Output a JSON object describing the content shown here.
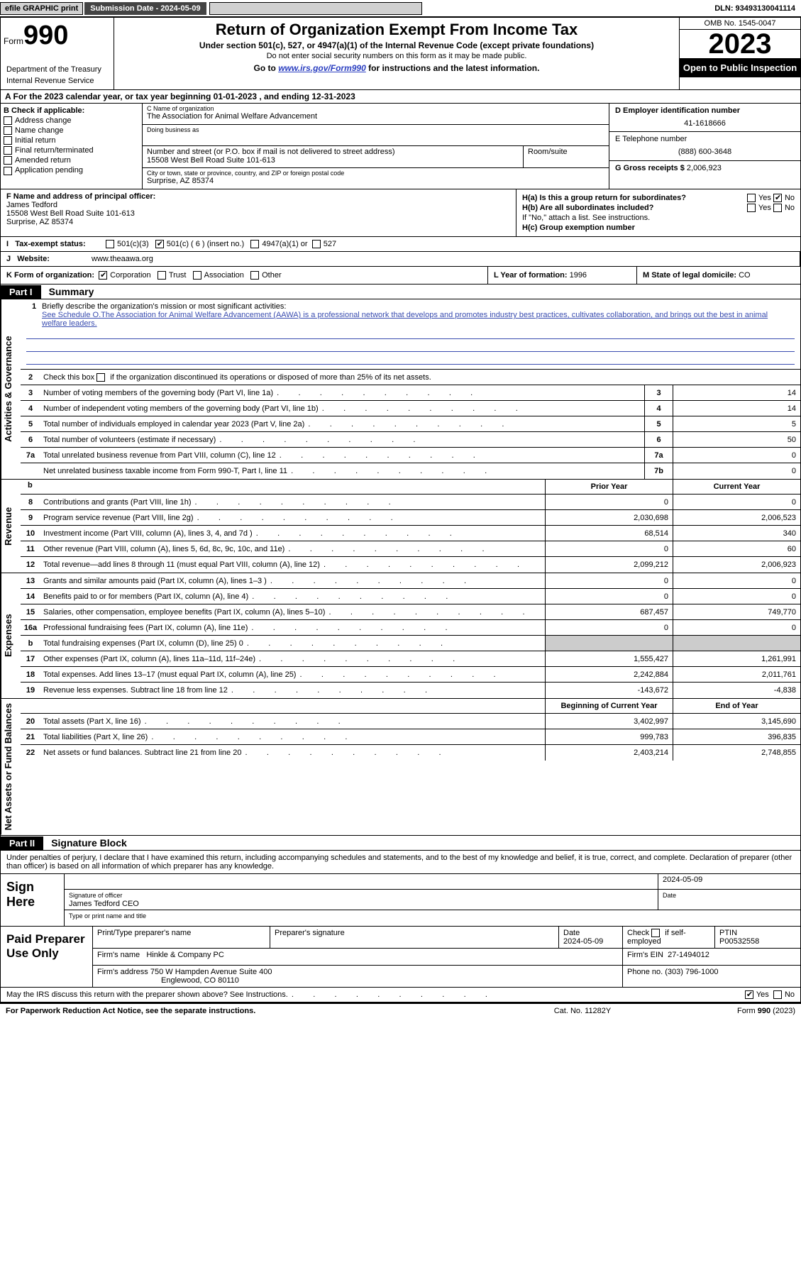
{
  "colors": {
    "link": "#2a3ec0",
    "black": "#000000",
    "shade": "#cccccc",
    "topbar_btn": "#d0d0d0",
    "topbar_dark": "#444444"
  },
  "topbar": {
    "efile": "efile GRAPHIC print",
    "submission": "Submission Date - 2024-05-09",
    "dln": "DLN: 93493130041114"
  },
  "header": {
    "form_prefix": "Form",
    "form_num": "990",
    "dept": "Department of the Treasury",
    "irs": "Internal Revenue Service",
    "title": "Return of Organization Exempt From Income Tax",
    "sub": "Under section 501(c), 527, or 4947(a)(1) of the Internal Revenue Code (except private foundations)",
    "nossn": "Do not enter social security numbers on this form as it may be made public.",
    "goto_prefix": "Go to ",
    "goto_link": "www.irs.gov/Form990",
    "goto_suffix": " for instructions and the latest information.",
    "omb": "OMB No. 1545-0047",
    "year": "2023",
    "open": "Open to Public Inspection"
  },
  "row_a": "A For the 2023 calendar year, or tax year beginning 01-01-2023    , and ending 12-31-2023",
  "box_b": {
    "label": "B Check if applicable:",
    "items": [
      "Address change",
      "Name change",
      "Initial return",
      "Final return/terminated",
      "Amended return",
      "Application pending"
    ]
  },
  "box_c": {
    "name_lbl": "C Name of organization",
    "name": "The Association for Animal Welfare Advancement",
    "dba_lbl": "Doing business as",
    "dba": "",
    "street_lbl": "Number and street (or P.O. box if mail is not delivered to street address)",
    "street": "15508 West Bell Road Suite 101-613",
    "room_lbl": "Room/suite",
    "room": "",
    "city_lbl": "City or town, state or province, country, and ZIP or foreign postal code",
    "city": "Surprise, AZ  85374"
  },
  "box_d": {
    "lbl": "D Employer identification number",
    "val": "41-1618666"
  },
  "box_e": {
    "lbl": "E Telephone number",
    "val": "(888) 600-3648"
  },
  "box_g": {
    "lbl": "G Gross receipts $",
    "val": "2,006,923"
  },
  "box_f": {
    "lbl": "F Name and address of principal officer:",
    "name": "James Tedford",
    "street": "15508 West Bell Road Suite 101-613",
    "city": "Surprise, AZ  85374"
  },
  "box_h": {
    "a_lbl": "H(a)  Is this a group return for subordinates?",
    "a_yes": "Yes",
    "a_no": "No",
    "b_lbl": "H(b)  Are all subordinates included?",
    "b_note": "If \"No,\" attach a list. See instructions.",
    "c_lbl": "H(c)  Group exemption number"
  },
  "row_i": {
    "lbl": "Tax-exempt status:",
    "opt1": "501(c)(3)",
    "opt2": "501(c) ( 6 ) (insert no.)",
    "opt3": "4947(a)(1) or",
    "opt4": "527"
  },
  "row_j": {
    "lbl": "Website:",
    "val": "www.theaawa.org"
  },
  "row_k": {
    "lbl": "K Form of organization:",
    "opts": [
      "Corporation",
      "Trust",
      "Association",
      "Other"
    ],
    "l_lbl": "L Year of formation:",
    "l_val": "1996",
    "m_lbl": "M State of legal domicile:",
    "m_val": "CO"
  },
  "part1": {
    "hdr": "Part I",
    "title": "Summary",
    "vtabs": [
      "Activities & Governance",
      "Revenue",
      "Expenses",
      "Net Assets or Fund Balances"
    ],
    "q1_lbl": "Briefly describe the organization's mission or most significant activities:",
    "q1_text": "See Schedule O.The Association for Animal Welfare Advancement (AAWA) is a professional network that develops and promotes industry best practices, cultivates collaboration, and brings out the best in animal welfare leaders.",
    "q2": "Check this box      if the organization discontinued its operations or disposed of more than 25% of its net assets.",
    "prior_hdr": "Prior Year",
    "curr_hdr": "Current Year",
    "begin_hdr": "Beginning of Current Year",
    "end_hdr": "End of Year",
    "lines_single": [
      {
        "n": "3",
        "t": "Number of voting members of the governing body (Part VI, line 1a)",
        "box": "3",
        "v": "14"
      },
      {
        "n": "4",
        "t": "Number of independent voting members of the governing body (Part VI, line 1b)",
        "box": "4",
        "v": "14"
      },
      {
        "n": "5",
        "t": "Total number of individuals employed in calendar year 2023 (Part V, line 2a)",
        "box": "5",
        "v": "5"
      },
      {
        "n": "6",
        "t": "Total number of volunteers (estimate if necessary)",
        "box": "6",
        "v": "50"
      },
      {
        "n": "7a",
        "t": "Total unrelated business revenue from Part VIII, column (C), line 12",
        "box": "7a",
        "v": "0"
      },
      {
        "n": "",
        "t": "Net unrelated business taxable income from Form 990-T, Part I, line 11",
        "box": "7b",
        "v": "0"
      }
    ],
    "lines_rev": [
      {
        "n": "8",
        "t": "Contributions and grants (Part VIII, line 1h)",
        "p": "0",
        "c": "0"
      },
      {
        "n": "9",
        "t": "Program service revenue (Part VIII, line 2g)",
        "p": "2,030,698",
        "c": "2,006,523"
      },
      {
        "n": "10",
        "t": "Investment income (Part VIII, column (A), lines 3, 4, and 7d )",
        "p": "68,514",
        "c": "340"
      },
      {
        "n": "11",
        "t": "Other revenue (Part VIII, column (A), lines 5, 6d, 8c, 9c, 10c, and 11e)",
        "p": "0",
        "c": "60"
      },
      {
        "n": "12",
        "t": "Total revenue—add lines 8 through 11 (must equal Part VIII, column (A), line 12)",
        "p": "2,099,212",
        "c": "2,006,923"
      }
    ],
    "lines_exp": [
      {
        "n": "13",
        "t": "Grants and similar amounts paid (Part IX, column (A), lines 1–3 )",
        "p": "0",
        "c": "0"
      },
      {
        "n": "14",
        "t": "Benefits paid to or for members (Part IX, column (A), line 4)",
        "p": "0",
        "c": "0"
      },
      {
        "n": "15",
        "t": "Salaries, other compensation, employee benefits (Part IX, column (A), lines 5–10)",
        "p": "687,457",
        "c": "749,770"
      },
      {
        "n": "16a",
        "t": "Professional fundraising fees (Part IX, column (A), line 11e)",
        "p": "0",
        "c": "0"
      },
      {
        "n": "b",
        "t": "Total fundraising expenses (Part IX, column (D), line 25) 0",
        "p": "",
        "c": "",
        "shade": true
      },
      {
        "n": "17",
        "t": "Other expenses (Part IX, column (A), lines 11a–11d, 11f–24e)",
        "p": "1,555,427",
        "c": "1,261,991"
      },
      {
        "n": "18",
        "t": "Total expenses. Add lines 13–17 (must equal Part IX, column (A), line 25)",
        "p": "2,242,884",
        "c": "2,011,761"
      },
      {
        "n": "19",
        "t": "Revenue less expenses. Subtract line 18 from line 12",
        "p": "-143,672",
        "c": "-4,838"
      }
    ],
    "lines_net": [
      {
        "n": "20",
        "t": "Total assets (Part X, line 16)",
        "p": "3,402,997",
        "c": "3,145,690"
      },
      {
        "n": "21",
        "t": "Total liabilities (Part X, line 26)",
        "p": "999,783",
        "c": "396,835"
      },
      {
        "n": "22",
        "t": "Net assets or fund balances. Subtract line 21 from line 20",
        "p": "2,403,214",
        "c": "2,748,855"
      }
    ]
  },
  "part2": {
    "hdr": "Part II",
    "title": "Signature Block",
    "decl": "Under penalties of perjury, I declare that I have examined this return, including accompanying schedules and statements, and to the best of my knowledge and belief, it is true, correct, and complete. Declaration of preparer (other than officer) is based on all information of which preparer has any knowledge.",
    "sign_here": "Sign Here",
    "sig_officer_lbl": "Signature of officer",
    "sig_name": "James Tedford CEO",
    "sig_name_lbl": "Type or print name and title",
    "sig_date_lbl": "Date",
    "sig_date": "2024-05-09",
    "paid_lbl": "Paid Preparer Use Only",
    "prep_name_lbl": "Print/Type preparer's name",
    "prep_name": "",
    "prep_sig_lbl": "Preparer's signature",
    "prep_date_lbl": "Date",
    "prep_date": "2024-05-09",
    "check_self_lbl": "Check       if self-employed",
    "ptin_lbl": "PTIN",
    "ptin": "P00532558",
    "firm_name_lbl": "Firm's name",
    "firm_name": "Hinkle & Company PC",
    "firm_ein_lbl": "Firm's EIN",
    "firm_ein": "27-1494012",
    "firm_addr_lbl": "Firm's address",
    "firm_addr1": "750 W Hampden Avenue Suite 400",
    "firm_addr2": "Englewood, CO  80110",
    "firm_phone_lbl": "Phone no.",
    "firm_phone": "(303) 796-1000",
    "irs_discuss": "May the IRS discuss this return with the preparer shown above? See Instructions.",
    "yes": "Yes",
    "no": "No"
  },
  "footer": {
    "pra": "For Paperwork Reduction Act Notice, see the separate instructions.",
    "cat": "Cat. No. 11282Y",
    "form": "Form 990 (2023)"
  }
}
